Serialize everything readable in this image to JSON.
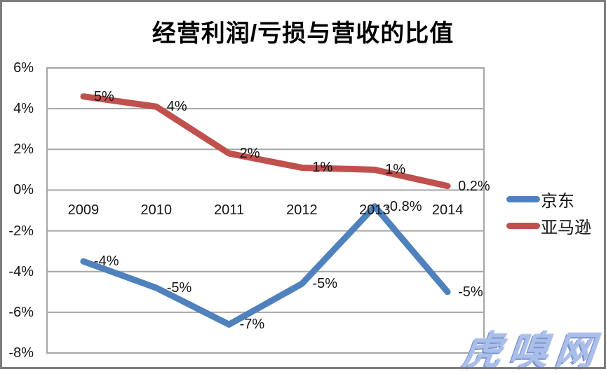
{
  "chart": {
    "title": "经营利润/亏损与营收的比值",
    "watermark": "虎嗅网"
  },
  "chart_data": {
    "type": "line",
    "title": "经营利润/亏损与营收的比值",
    "categories": [
      "2009",
      "2010",
      "2011",
      "2012",
      "2013",
      "2014"
    ],
    "series": [
      {
        "name": "京东",
        "color": "#4F81BD",
        "values": [
          -3.5,
          -4.8,
          -6.6,
          -4.6,
          -0.8,
          -5.0
        ],
        "point_labels": [
          "-4%",
          "-5%",
          "-7%",
          "-5%",
          "-0.8%",
          "-5%"
        ]
      },
      {
        "name": "亚马逊",
        "color": "#C0504D",
        "values": [
          4.6,
          4.1,
          1.8,
          1.1,
          1.0,
          0.2
        ],
        "point_labels": [
          "5%",
          "4%",
          "2%",
          "1%",
          "1%",
          "0.2%"
        ]
      }
    ],
    "y_ticks": [
      {
        "value": 6,
        "label": "6%"
      },
      {
        "value": 4,
        "label": "4%"
      },
      {
        "value": 2,
        "label": "2%"
      },
      {
        "value": 0,
        "label": "0%"
      },
      {
        "value": -2,
        "label": "-2%"
      },
      {
        "value": -4,
        "label": "-4%"
      },
      {
        "value": -6,
        "label": "-6%"
      },
      {
        "value": -8,
        "label": "-8%"
      }
    ],
    "ylim": [
      -8,
      6
    ],
    "grid": true,
    "grid_color": "#A6A6A6",
    "legend_position": "right"
  },
  "legend": {
    "items": [
      {
        "label": "京东",
        "color": "#4F81BD"
      },
      {
        "label": "亚马逊",
        "color": "#C0504D"
      }
    ]
  }
}
